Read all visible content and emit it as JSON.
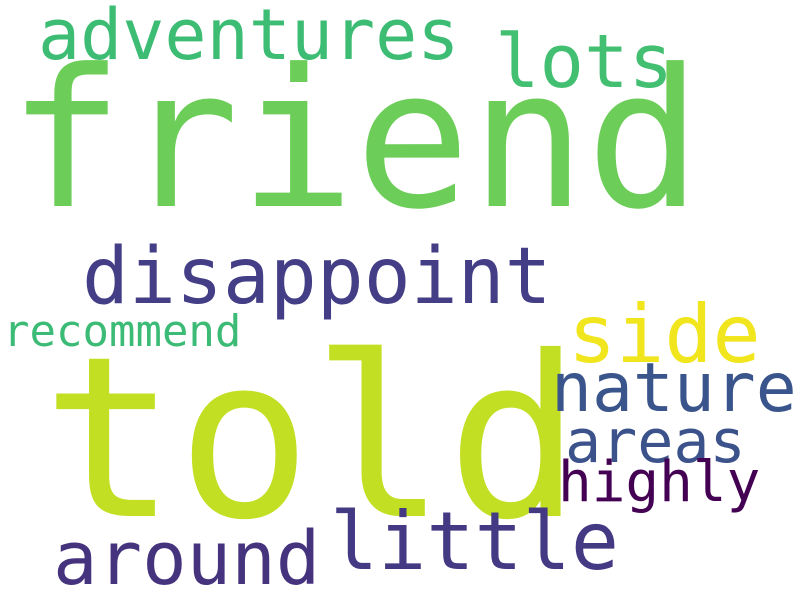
{
  "words": [
    {
      "id": "friend",
      "text": "friend",
      "color": "#6ccd59"
    },
    {
      "id": "told",
      "text": "told",
      "color": "#c2df23"
    },
    {
      "id": "adventures",
      "text": "adventures",
      "color": "#3dbc74"
    },
    {
      "id": "lots",
      "text": "lots",
      "color": "#43bf71"
    },
    {
      "id": "disappoint",
      "text": "disappoint",
      "color": "#433e85"
    },
    {
      "id": "side",
      "text": "side",
      "color": "#f1e51d"
    },
    {
      "id": "recommend",
      "text": "recommend",
      "color": "#3bbb75"
    },
    {
      "id": "nature",
      "text": "nature",
      "color": "#3a548c"
    },
    {
      "id": "areas",
      "text": "areas",
      "color": "#3b528b"
    },
    {
      "id": "highly",
      "text": "highly",
      "color": "#440154"
    },
    {
      "id": "little",
      "text": "little",
      "color": "#443983"
    },
    {
      "id": "around",
      "text": "around",
      "color": "#46337e"
    }
  ]
}
